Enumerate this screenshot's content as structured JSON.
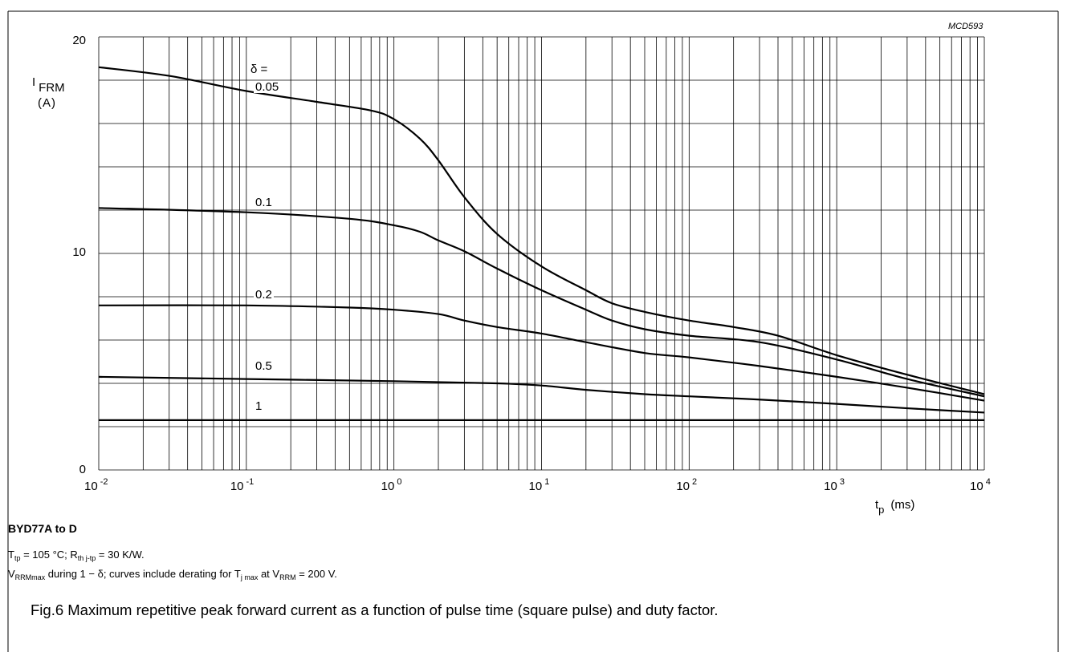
{
  "code": "MCD593",
  "y_label": {
    "symbol": "I",
    "subscript": "FRM",
    "unit": "(A)"
  },
  "x_label": {
    "symbol": "t",
    "subscript": "p",
    "unit": "(ms)"
  },
  "y_ticks": [
    "20",
    "10",
    "0"
  ],
  "x_ticks": [
    {
      "base": "10",
      "exp": "-2"
    },
    {
      "base": "10",
      "exp": "-1"
    },
    {
      "base": "10",
      "exp": "0"
    },
    {
      "base": "10",
      "exp": "1"
    },
    {
      "base": "10",
      "exp": "2"
    },
    {
      "base": "10",
      "exp": "3"
    },
    {
      "base": "10",
      "exp": "4"
    }
  ],
  "delta_header": "δ =",
  "model": "BYD77A to D",
  "note1": {
    "t": "T",
    "t_sub": "tp",
    "t_text": " = 105 °C; R",
    "r_sub": "th j-tp",
    "r_text": " = 30 K/W."
  },
  "note2": {
    "v": "V",
    "v_sub": "RRMmax",
    "mid": " during 1 − δ; curves include derating for T",
    "tj_sub": "j max",
    "at": " at V",
    "vrrm_sub": "RRM",
    "end": " = 200 V."
  },
  "caption": "Fig.6  Maximum repetitive peak forward current as a function of pulse time (square pulse) and duty factor.",
  "chart_data": {
    "type": "line",
    "x_scale": "log",
    "xlim": [
      0.01,
      10000
    ],
    "ylim": [
      0,
      20
    ],
    "grid": true,
    "series": [
      {
        "name": "0.05",
        "x": [
          0.01,
          0.03,
          0.1,
          0.3,
          0.7,
          1,
          1.5,
          2,
          3,
          5,
          10,
          20,
          30,
          50,
          100,
          200,
          400,
          1000,
          3000,
          10000
        ],
        "values": [
          18.6,
          18.2,
          17.5,
          17,
          16.6,
          16.2,
          15.3,
          14.3,
          12.6,
          10.9,
          9.4,
          8.3,
          7.7,
          7.3,
          6.9,
          6.6,
          6.2,
          5.3,
          4.4,
          3.5
        ]
      },
      {
        "name": "0.1",
        "x": [
          0.01,
          0.1,
          0.5,
          1,
          1.5,
          2,
          3,
          5,
          10,
          20,
          30,
          50,
          100,
          300,
          1000,
          3000,
          10000
        ],
        "values": [
          12.1,
          11.9,
          11.6,
          11.3,
          11,
          10.6,
          10.1,
          9.3,
          8.3,
          7.4,
          6.9,
          6.5,
          6.2,
          5.9,
          5.1,
          4.2,
          3.4
        ]
      },
      {
        "name": "0.2",
        "x": [
          0.01,
          0.1,
          0.5,
          1,
          2,
          3,
          5,
          10,
          20,
          50,
          100,
          300,
          1000,
          3000,
          10000
        ],
        "values": [
          7.6,
          7.6,
          7.5,
          7.4,
          7.2,
          6.9,
          6.6,
          6.3,
          5.9,
          5.4,
          5.2,
          4.8,
          4.3,
          3.8,
          3.2
        ]
      },
      {
        "name": "0.5",
        "x": [
          0.01,
          0.1,
          1,
          5,
          10,
          20,
          50,
          100,
          300,
          1000,
          3000,
          10000
        ],
        "values": [
          4.3,
          4.2,
          4.1,
          4.0,
          3.9,
          3.7,
          3.5,
          3.4,
          3.25,
          3.05,
          2.85,
          2.65
        ]
      },
      {
        "name": "1",
        "x": [
          0.01,
          10000
        ],
        "values": [
          2.3,
          2.3
        ]
      }
    ]
  }
}
